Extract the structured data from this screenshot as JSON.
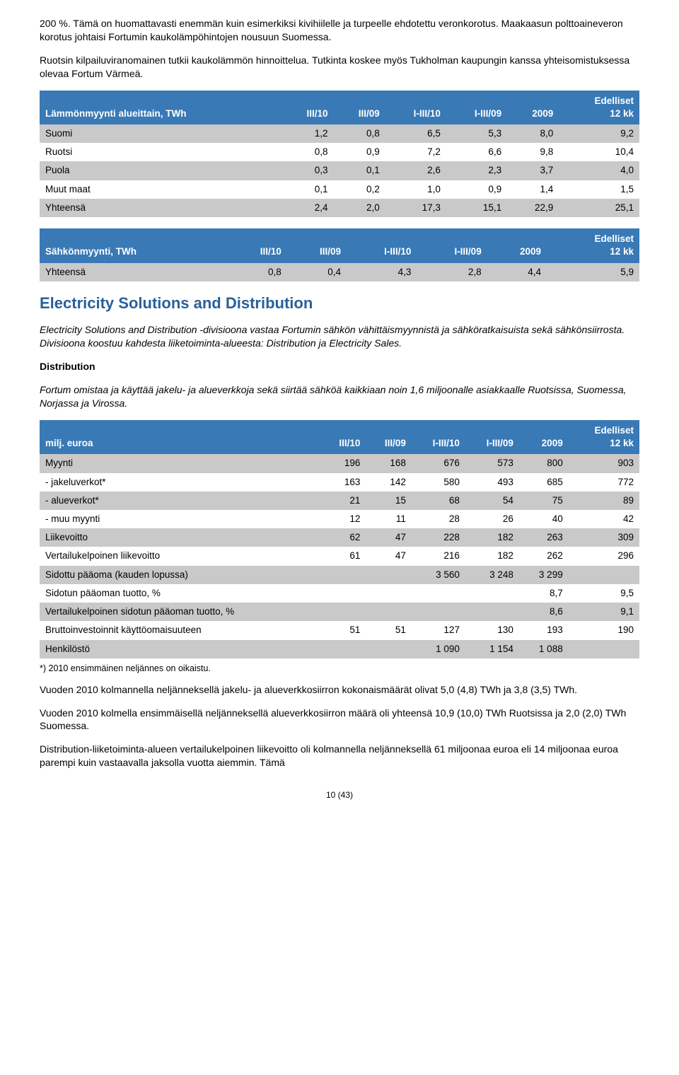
{
  "intro": {
    "p1": "200 %. Tämä on huomattavasti enemmän kuin esimerkiksi kivihiilelle ja turpeelle ehdotettu veronkorotus. Maakaasun polttoaineveron korotus johtaisi Fortumin kaukolämpöhintojen nousuun Suomessa.",
    "p2": "Ruotsin kilpailuviranomainen tutkii kaukolämmön hinnoittelua. Tutkinta koskee myös Tukholman kaupungin kanssa yhteisomistuksessa olevaa Fortum Värmeä."
  },
  "table1": {
    "title": "Lämmönmyynti alueittain, TWh",
    "columns": [
      "III/10",
      "III/09",
      "I-III/10",
      "I-III/09",
      "2009",
      "Edelliset\n12 kk"
    ],
    "rows": [
      {
        "label": "Suomi",
        "vals": [
          "1,2",
          "0,8",
          "6,5",
          "5,3",
          "8,0",
          "9,2"
        ],
        "alt": true
      },
      {
        "label": "Ruotsi",
        "vals": [
          "0,8",
          "0,9",
          "7,2",
          "6,6",
          "9,8",
          "10,4"
        ],
        "alt": false
      },
      {
        "label": "Puola",
        "vals": [
          "0,3",
          "0,1",
          "2,6",
          "2,3",
          "3,7",
          "4,0"
        ],
        "alt": true
      },
      {
        "label": "Muut maat",
        "vals": [
          "0,1",
          "0,2",
          "1,0",
          "0,9",
          "1,4",
          "1,5"
        ],
        "alt": false
      },
      {
        "label": "Yhteensä",
        "vals": [
          "2,4",
          "2,0",
          "17,3",
          "15,1",
          "22,9",
          "25,1"
        ],
        "alt": true
      }
    ]
  },
  "table2": {
    "title": "Sähkönmyynti, TWh",
    "columns": [
      "III/10",
      "III/09",
      "I-III/10",
      "I-III/09",
      "2009",
      "Edelliset\n12 kk"
    ],
    "rows": [
      {
        "label": "Yhteensä",
        "vals": [
          "0,8",
          "0,4",
          "4,3",
          "2,8",
          "4,4",
          "5,9"
        ],
        "alt": true
      }
    ]
  },
  "section": {
    "heading": "Electricity Solutions and Distribution",
    "p1": "Electricity Solutions and Distribution -divisioona vastaa Fortumin sähkön vähittäismyynnistä ja sähköratkaisuista sekä sähkönsiirrosta. Divisioona koostuu kahdesta liiketoiminta-alueesta: Distribution ja Electricity Sales.",
    "subheading": "Distribution",
    "p2": "Fortum omistaa ja käyttää jakelu- ja alueverkkoja sekä siirtää sähköä kaikkiaan noin 1,6 miljoonalle asiakkaalle Ruotsissa, Suomessa, Norjassa ja Virossa."
  },
  "table3": {
    "title": "milj. euroa",
    "columns": [
      "III/10",
      "III/09",
      "I-III/10",
      "I-III/09",
      "2009",
      "Edelliset\n12 kk"
    ],
    "rows": [
      {
        "label": "Myynti",
        "vals": [
          "196",
          "168",
          "676",
          "573",
          "800",
          "903"
        ],
        "alt": true
      },
      {
        "label": "- jakeluverkot*",
        "vals": [
          "163",
          "142",
          "580",
          "493",
          "685",
          "772"
        ],
        "alt": false
      },
      {
        "label": "- alueverkot*",
        "vals": [
          "21",
          "15",
          "68",
          "54",
          "75",
          "89"
        ],
        "alt": true
      },
      {
        "label": "- muu myynti",
        "vals": [
          "12",
          "11",
          "28",
          "26",
          "40",
          "42"
        ],
        "alt": false
      },
      {
        "label": "Liikevoitto",
        "vals": [
          "62",
          "47",
          "228",
          "182",
          "263",
          "309"
        ],
        "alt": true
      },
      {
        "label": "Vertailukelpoinen liikevoitto",
        "vals": [
          "61",
          "47",
          "216",
          "182",
          "262",
          "296"
        ],
        "alt": false
      },
      {
        "label": "Sidottu pääoma (kauden lopussa)",
        "vals": [
          "",
          "",
          "3 560",
          "3 248",
          "3 299",
          ""
        ],
        "alt": true
      },
      {
        "label": "Sidotun pääoman tuotto, %",
        "vals": [
          "",
          "",
          "",
          "",
          "8,7",
          "9,5"
        ],
        "alt": false
      },
      {
        "label": "Vertailukelpoinen sidotun pääoman tuotto, %",
        "vals": [
          "",
          "",
          "",
          "",
          "8,6",
          "9,1"
        ],
        "alt": true
      },
      {
        "label": "Bruttoinvestoinnit käyttöomaisuuteen",
        "vals": [
          "51",
          "51",
          "127",
          "130",
          "193",
          "190"
        ],
        "alt": false
      },
      {
        "label": "Henkilöstö",
        "vals": [
          "",
          "",
          "1 090",
          "1 154",
          "1 088",
          ""
        ],
        "alt": true
      }
    ],
    "footnote": "*) 2010 ensimmäinen neljännes on oikaistu."
  },
  "tail": {
    "p1": "Vuoden 2010 kolmannella neljänneksellä jakelu- ja alueverkkosiirron kokonaismäärät olivat 5,0 (4,8) TWh ja 3,8 (3,5) TWh.",
    "p2": "Vuoden 2010 kolmella ensimmäisellä neljänneksellä alueverkkosiirron määrä oli yhteensä 10,9 (10,0) TWh Ruotsissa ja 2,0 (2,0) TWh Suomessa.",
    "p3": "Distribution-liiketoiminta-alueen vertailukelpoinen liikevoitto oli kolmannella neljänneksellä 61 miljoonaa euroa eli 14 miljoonaa euroa parempi kuin vastaavalla jaksolla vuotta aiemmin. Tämä"
  },
  "pagefoot": "10 (43)",
  "style": {
    "header_bg": "#3879b6",
    "header_fg": "#ffffff",
    "alt_row_bg": "#c9c9c9",
    "heading_color": "#2a6099"
  }
}
